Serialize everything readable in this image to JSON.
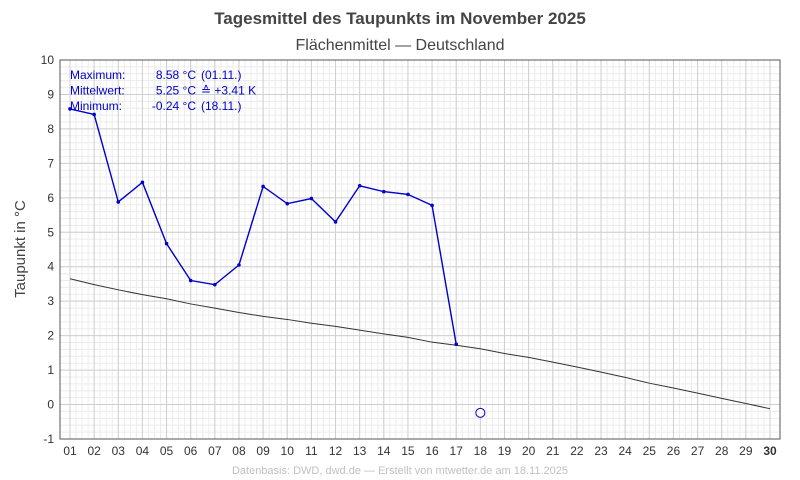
{
  "chart_data": {
    "type": "line",
    "title": "Tagesmittel des Taupunkts im November 2025",
    "subtitle": "Flächenmittel — Deutschland",
    "ylabel": "Taupunkt in °C",
    "xlabel": "",
    "ylim": [
      -1,
      10
    ],
    "xlim": [
      1,
      30
    ],
    "y_ticks": [
      -1,
      0,
      1,
      2,
      3,
      4,
      5,
      6,
      7,
      8,
      9,
      10
    ],
    "x_tick_labels": [
      "01",
      "02",
      "03",
      "04",
      "05",
      "06",
      "07",
      "08",
      "09",
      "10",
      "11",
      "12",
      "13",
      "14",
      "15",
      "16",
      "17",
      "18",
      "19",
      "20",
      "21",
      "22",
      "23",
      "24",
      "25",
      "26",
      "27",
      "28",
      "29",
      "30"
    ],
    "bold_x_tick": "30",
    "grid": true,
    "series": [
      {
        "name": "",
        "color": "#0000cc",
        "x": [
          1,
          2,
          3,
          4,
          5,
          6,
          7,
          8,
          9,
          10,
          11,
          12,
          13,
          14,
          15,
          16,
          17
        ],
        "values": [
          8.58,
          8.42,
          5.88,
          6.45,
          4.67,
          3.6,
          3.48,
          4.05,
          6.33,
          5.83,
          5.98,
          5.3,
          6.35,
          6.18,
          6.1,
          5.78,
          1.75
        ]
      },
      {
        "name": "",
        "color": "#333333",
        "x": [
          1,
          2,
          3,
          4,
          5,
          6,
          7,
          8,
          9,
          10,
          11,
          12,
          13,
          14,
          15,
          16,
          17,
          18,
          19,
          20,
          21,
          22,
          23,
          24,
          25,
          26,
          27,
          28,
          29,
          30
        ],
        "values": [
          3.65,
          3.48,
          3.33,
          3.19,
          3.07,
          2.92,
          2.8,
          2.67,
          2.56,
          2.47,
          2.36,
          2.27,
          2.16,
          2.05,
          1.95,
          1.81,
          1.72,
          1.62,
          1.48,
          1.37,
          1.23,
          1.09,
          0.94,
          0.79,
          0.62,
          0.48,
          0.33,
          0.18,
          0.03,
          -0.12
        ]
      }
    ],
    "minimum_marker": {
      "x": 18,
      "value": -0.24,
      "color": "#0000cc"
    },
    "stats": [
      {
        "label": "Maximum:",
        "value": "8.58 °C",
        "extra": "(01.11.)"
      },
      {
        "label": "Mittelwert:",
        "value": "5.25 °C",
        "extra": "≙ +3.41 K"
      },
      {
        "label": "Minimum:",
        "value": "-0.24 °C",
        "extra": "(18.11.)"
      }
    ],
    "footer": "Datenbasis: DWD, dwd.de — Erstellt von mtwetter.de am 18.11.2025"
  }
}
